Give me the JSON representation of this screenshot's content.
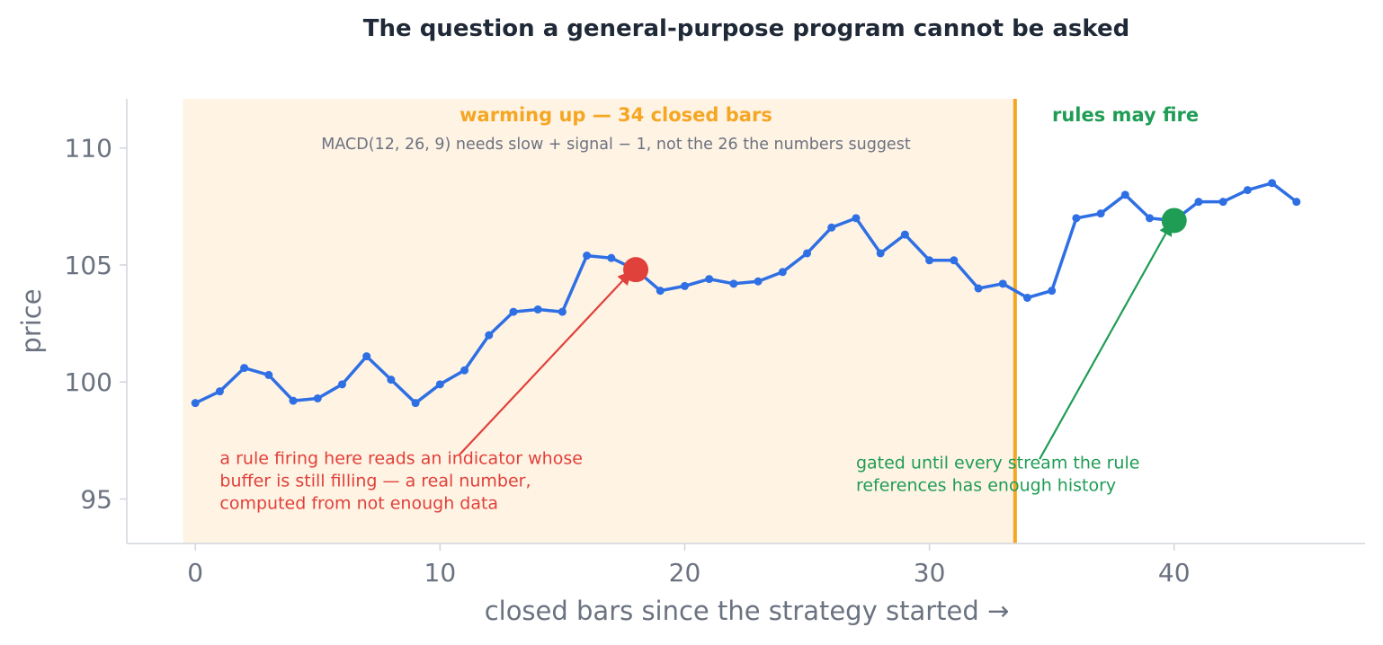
{
  "chart_data": {
    "type": "line",
    "title": "The question a general-purpose program cannot be asked",
    "xlabel": "closed bars since the strategy started →",
    "ylabel": "price",
    "xlim": [
      -2.8,
      47.8
    ],
    "ylim": [
      93.1,
      112.1
    ],
    "x_ticks": [
      0,
      10,
      20,
      30,
      40
    ],
    "y_ticks": [
      95,
      100,
      105,
      110
    ],
    "grid": false,
    "colors": {
      "line": "#2f6fe4",
      "warmup_band": "#fff3e4",
      "warmup_accent": "#f5a623",
      "ready_accent": "#1f9d55",
      "early_marker": "#e0413a",
      "axis": "#d1d5db",
      "text_muted": "#6b7280"
    },
    "series": [
      {
        "x": [
          0,
          1,
          2,
          3,
          4,
          5,
          6,
          7,
          8,
          9,
          10,
          11,
          12,
          13,
          14,
          15,
          16,
          17,
          18,
          19,
          20,
          21,
          22,
          23,
          24,
          25,
          26,
          27,
          28,
          29,
          30,
          31,
          32,
          33,
          34,
          35,
          36,
          37,
          38,
          39,
          40,
          41,
          42,
          43,
          44,
          45
        ],
        "values": [
          99.1,
          99.6,
          100.6,
          100.3,
          99.2,
          99.3,
          99.9,
          101.1,
          100.1,
          99.1,
          99.9,
          100.5,
          102.0,
          103.0,
          103.1,
          103.0,
          105.4,
          105.3,
          104.8,
          103.9,
          104.1,
          104.4,
          104.2,
          104.3,
          104.7,
          105.5,
          106.6,
          107.0,
          105.5,
          106.3,
          105.2,
          105.2,
          104.0,
          104.2,
          103.6,
          103.9,
          107.0,
          107.2,
          108.0,
          107.0,
          106.9,
          107.7,
          107.7,
          108.2,
          108.5,
          107.7
        ]
      }
    ],
    "warmup": {
      "x_start": -0.5,
      "x_end": 33.5,
      "title": "warming up — 34 closed bars",
      "subtitle": "MACD(12, 26, 9) needs slow + signal − 1, not the 26 the numbers suggest"
    },
    "ready": {
      "title": "rules may fire"
    },
    "markers": [
      {
        "name": "early-fire",
        "x": 18,
        "y": 104.8
      },
      {
        "name": "gated-fire",
        "x": 40,
        "y": 106.9
      }
    ],
    "annotations": [
      {
        "name": "early",
        "lines": [
          "a rule firing here reads an indicator whose",
          "buffer is still filling — a real number,",
          "computed from not enough data"
        ],
        "text_x": 1,
        "text_y": 96.5,
        "arrow_from": [
          10.8,
          96.9
        ],
        "arrow_to": [
          17.8,
          104.7
        ]
      },
      {
        "name": "gated",
        "lines": [
          "gated until every stream the rule",
          "references has enough history"
        ],
        "text_x": 27,
        "text_y": 96.3,
        "arrow_from": [
          34.5,
          96.7
        ],
        "arrow_to": [
          39.9,
          106.8
        ]
      }
    ]
  }
}
